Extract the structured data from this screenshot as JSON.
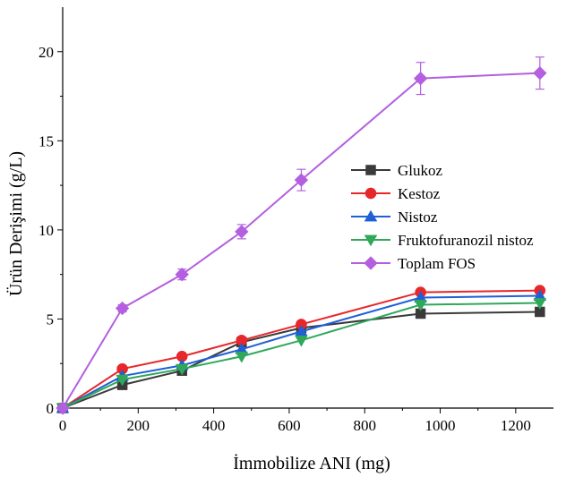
{
  "chart_data": {
    "type": "line",
    "title": "",
    "xlabel": "İmmobilize ANI (mg)",
    "ylabel": "Ürün Derişimi (g/L)",
    "xlim": [
      0,
      1300
    ],
    "ylim": [
      0,
      22.5
    ],
    "x_ticks": [
      "0",
      "200",
      "400",
      "600",
      "800",
      "1000",
      "1200"
    ],
    "y_ticks": [
      "0",
      "5",
      "10",
      "15",
      "20"
    ],
    "x_tick_values": [
      0,
      200,
      400,
      600,
      800,
      1000,
      1200
    ],
    "y_tick_values": [
      0,
      5,
      10,
      15,
      20
    ],
    "x": [
      0,
      158,
      316,
      474,
      632,
      948,
      1264
    ],
    "legend_position": "center-right",
    "grid": false,
    "series": [
      {
        "name": "Glukoz",
        "color": "#3a3a3a",
        "marker": "square",
        "values": [
          0,
          1.3,
          2.1,
          3.7,
          4.5,
          5.3,
          5.4
        ]
      },
      {
        "name": "Kestoz",
        "color": "#e8272b",
        "marker": "circle",
        "values": [
          0,
          2.2,
          2.9,
          3.8,
          4.7,
          6.5,
          6.6
        ]
      },
      {
        "name": "Nistoz",
        "color": "#1f5fd8",
        "marker": "triangle-up",
        "values": [
          0,
          1.8,
          2.4,
          3.3,
          4.3,
          6.2,
          6.3
        ]
      },
      {
        "name": "Fruktofuranozil nistoz",
        "color": "#2fa85a",
        "marker": "triangle-down",
        "values": [
          0,
          1.6,
          2.2,
          2.9,
          3.8,
          5.8,
          5.9
        ]
      },
      {
        "name": "Toplam FOS",
        "color": "#b35fe0",
        "marker": "diamond",
        "values": [
          0,
          5.6,
          7.5,
          9.9,
          12.8,
          18.5,
          18.8
        ],
        "errors": [
          0,
          0.2,
          0.3,
          0.4,
          0.6,
          0.9,
          0.9
        ]
      }
    ]
  }
}
